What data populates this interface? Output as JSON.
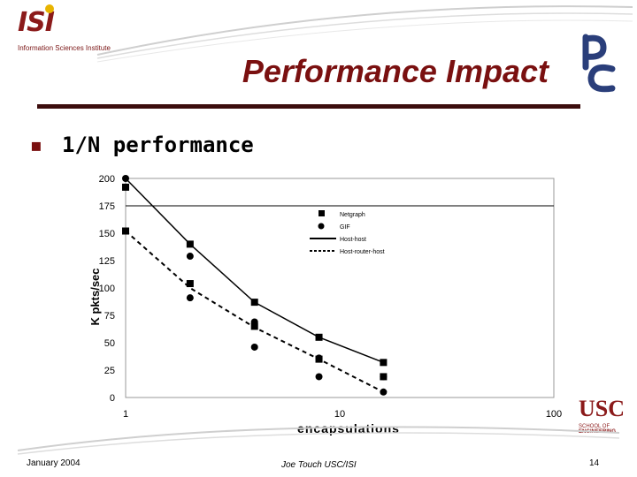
{
  "slide": {
    "title": "Performance Impact",
    "bullet_marker": "▪",
    "bullet_text": "1/N performance",
    "colors": {
      "title": "#7a1010",
      "rule": "#3c0d0d",
      "pc_logo": "#2a3e7a"
    }
  },
  "logos": {
    "isi_mark": "ISI",
    "isi_sub": "Information Sciences Institute",
    "usc_mark": "USC",
    "usc_sub1": "SCHOOL OF",
    "usc_sub2": "ENGINEERING"
  },
  "footer": {
    "date": "January 2004",
    "author": "Joe Touch USC/ISI",
    "page": "14"
  },
  "chart_data": {
    "type": "line",
    "xlabel": "encapsulations",
    "ylabel": "K pkts/sec",
    "x_scale": "log",
    "xlim": [
      1,
      100
    ],
    "ylim": [
      0,
      200
    ],
    "x_ticks": [
      "1",
      "10",
      "100"
    ],
    "y_ticks": [
      "200",
      "175",
      "150",
      "125",
      "100",
      "75",
      "50",
      "25",
      "0"
    ],
    "grid": false,
    "reference_line_y": 175,
    "legend_position": "top-right",
    "series": [
      {
        "name": "Netgraph",
        "marker": "square",
        "line": "none",
        "x": [
          1,
          2,
          4,
          8,
          16
        ],
        "y": [
          192,
          140,
          87,
          55,
          32
        ]
      },
      {
        "name": "GIF",
        "marker": "circle",
        "line": "none",
        "x": [
          1,
          2,
          4,
          8,
          16
        ],
        "y": [
          200,
          129,
          69,
          36,
          19
        ]
      },
      {
        "name": "Host-host",
        "marker": "none",
        "line": "solid",
        "x": [
          1,
          2,
          4,
          8,
          16
        ],
        "y": [
          200,
          140,
          87,
          55,
          32
        ]
      },
      {
        "name": "Host-router-host",
        "marker": "none",
        "line": "dashed",
        "x": [
          1,
          2,
          4,
          8,
          16
        ],
        "y": [
          152,
          100,
          64,
          35,
          5
        ]
      },
      {
        "name": "",
        "marker": "square",
        "line": "none",
        "x": [
          1,
          2,
          4,
          8,
          16
        ],
        "y": [
          152,
          104,
          65,
          35,
          19
        ]
      },
      {
        "name": "",
        "marker": "circle",
        "line": "none",
        "x": [
          2,
          4,
          8,
          16
        ],
        "y": [
          91,
          46,
          19,
          5
        ]
      }
    ]
  }
}
